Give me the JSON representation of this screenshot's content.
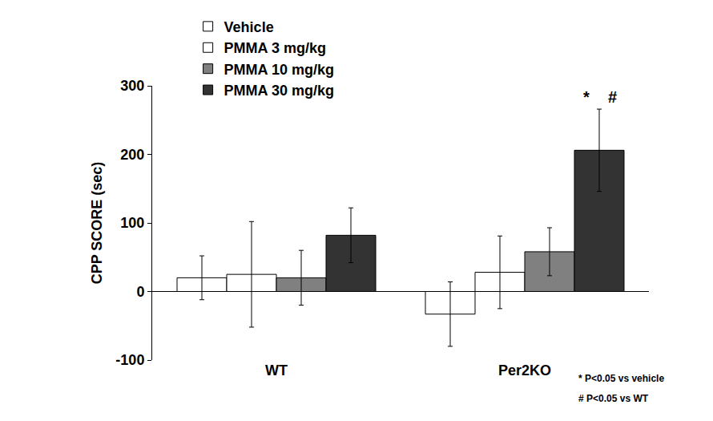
{
  "chart_data": {
    "type": "bar",
    "categories": [
      "WT",
      "Per2KO"
    ],
    "series": [
      {
        "name": "Vehicle",
        "color": "#ffffff",
        "values": [
          20,
          -33
        ],
        "errors": [
          32,
          47
        ]
      },
      {
        "name": "PMMA 3 mg/kg",
        "color": "#ffffff",
        "values": [
          25,
          28
        ],
        "errors": [
          77,
          53
        ]
      },
      {
        "name": "PMMA 10 mg/kg",
        "color": "#808080",
        "values": [
          20,
          58
        ],
        "errors": [
          40,
          35
        ]
      },
      {
        "name": "PMMA 30 mg/kg",
        "color": "#333333",
        "values": [
          82,
          206
        ],
        "errors": [
          40,
          60
        ]
      }
    ],
    "y_label": "CPP SCORE (sec)",
    "ylim": [
      -100,
      300
    ],
    "yticks": [
      -100,
      0,
      100,
      200,
      300
    ],
    "grid": false,
    "legend": "upper left",
    "annotations": [
      {
        "text": "*",
        "category": "Per2KO",
        "series": "PMMA 30 mg/kg"
      },
      {
        "text": "#",
        "category": "Per2KO",
        "series": "PMMA 30 mg/kg"
      }
    ],
    "notes": [
      "* P<0.05 vs vehicle",
      "# P<0.05 vs WT"
    ]
  }
}
